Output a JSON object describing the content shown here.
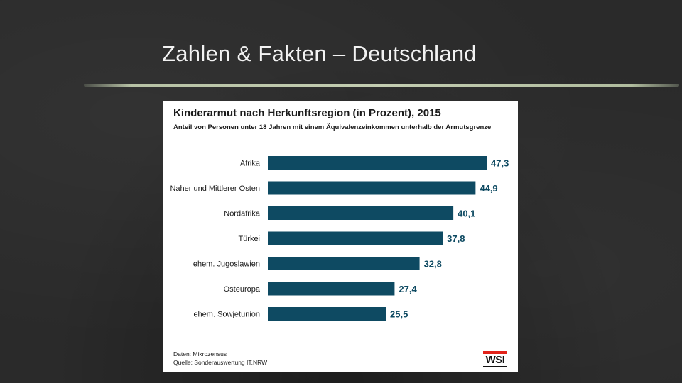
{
  "slide": {
    "title": "Zahlen & Fakten – Deutschland"
  },
  "chart_data": {
    "type": "bar",
    "orientation": "horizontal",
    "title": "Kinderarmut nach Herkunftsregion (in Prozent), 2015",
    "subtitle": "Anteil von Personen unter 18 Jahren mit einem Äquivalenzeinkommen unterhalb der Armutsgrenze",
    "categories": [
      "Afrika",
      "Naher und Mittlerer Osten",
      "Nordafrika",
      "Türkei",
      "ehem. Jugoslawien",
      "Osteuropa",
      "ehem. Sowjetunion"
    ],
    "values": [
      47.3,
      44.9,
      40.1,
      37.8,
      32.8,
      27.4,
      25.5
    ],
    "value_labels": [
      "47,3",
      "44,9",
      "40,1",
      "37,8",
      "32,8",
      "27,4",
      "25,5"
    ],
    "xlim": [
      0,
      47.3
    ],
    "xlabel": "",
    "ylabel": "",
    "grid": false,
    "bar_color": "#0e4a62",
    "label_color": "#0e4a62"
  },
  "footer": {
    "data_source": "Daten: Mikrozensus",
    "source": "Quelle: Sonderauswertung IT.NRW",
    "logo_text": "WSI"
  },
  "colors": {
    "background": "#2a2a2a",
    "card": "#ffffff",
    "logo_accent": "#e2231a"
  }
}
